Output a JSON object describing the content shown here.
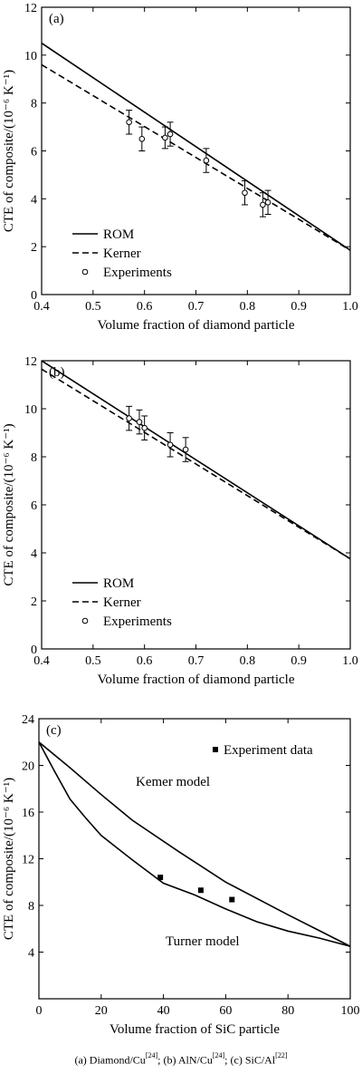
{
  "chart_data": [
    {
      "type": "line",
      "panel_tag": "(a)",
      "xlabel": "Volume fraction of diamond particle",
      "ylabel": "CTE of composite/(10⁻⁶ K⁻¹)",
      "xlim": [
        0.4,
        1.0
      ],
      "ylim": [
        0,
        12
      ],
      "x_ticks": [
        "0.4",
        "0.5",
        "0.6",
        "0.7",
        "0.8",
        "0.9",
        "1.0"
      ],
      "y_ticks": [
        "0",
        "2",
        "4",
        "6",
        "8",
        "10",
        "12"
      ],
      "legend_position": "bottom-left",
      "series": [
        {
          "name": "ROM",
          "style": "solid",
          "x": [
            0.4,
            1.0
          ],
          "y": [
            10.5,
            1.85
          ]
        },
        {
          "name": "Kerner",
          "style": "dashed",
          "x": [
            0.4,
            1.0
          ],
          "y": [
            9.6,
            1.85
          ]
        },
        {
          "name": "Experiments",
          "style": "markers",
          "x": [
            0.57,
            0.595,
            0.64,
            0.65,
            0.72,
            0.795,
            0.83,
            0.84
          ],
          "y": [
            7.2,
            6.5,
            6.55,
            6.7,
            5.6,
            4.25,
            3.75,
            3.85
          ],
          "err": [
            0.5,
            0.5,
            0.45,
            0.5,
            0.5,
            0.5,
            0.5,
            0.5
          ]
        }
      ]
    },
    {
      "type": "line",
      "panel_tag": "(b)",
      "xlabel": "Volume fraction of diamond particle",
      "ylabel": "CTE of composite/(10⁻⁶ K⁻¹)",
      "xlim": [
        0.4,
        1.0
      ],
      "ylim": [
        0,
        12
      ],
      "x_ticks": [
        "0.4",
        "0.5",
        "0.6",
        "0.7",
        "0.8",
        "0.9",
        "1.0"
      ],
      "y_ticks": [
        "0",
        "2",
        "4",
        "6",
        "8",
        "10",
        "12"
      ],
      "legend_position": "bottom-left",
      "series": [
        {
          "name": "ROM",
          "style": "solid",
          "x": [
            0.4,
            1.0
          ],
          "y": [
            12.0,
            3.75
          ]
        },
        {
          "name": "Kerner",
          "style": "dashed",
          "x": [
            0.4,
            1.0
          ],
          "y": [
            11.65,
            3.75
          ]
        },
        {
          "name": "Experiments",
          "style": "markers",
          "x": [
            0.57,
            0.59,
            0.6,
            0.65,
            0.68
          ],
          "y": [
            9.6,
            9.45,
            9.2,
            8.5,
            8.3
          ],
          "err": [
            0.5,
            0.5,
            0.5,
            0.5,
            0.5
          ]
        }
      ]
    },
    {
      "type": "line",
      "panel_tag": "(c)",
      "xlabel": "Volume fraction of SiC particle",
      "ylabel": "CTE of composite/(10⁻⁶ K⁻¹)",
      "xlim": [
        0,
        100
      ],
      "ylim": [
        0,
        24
      ],
      "x_ticks": [
        "0",
        "20",
        "40",
        "60",
        "80",
        "100"
      ],
      "y_ticks": [
        "4",
        "8",
        "12",
        "16",
        "20",
        "24"
      ],
      "annotations": [
        "Kemer model",
        "Turner model"
      ],
      "legend_position": "top-right",
      "series": [
        {
          "name": "Kemer model",
          "style": "solid",
          "x": [
            0,
            10,
            20,
            30,
            45,
            60,
            80,
            100
          ],
          "y": [
            22.0,
            19.8,
            17.5,
            15.3,
            12.6,
            10.0,
            7.2,
            4.5
          ]
        },
        {
          "name": "Turner model",
          "style": "solid",
          "x": [
            0,
            5,
            10,
            15,
            20,
            30,
            40,
            50,
            60,
            70,
            80,
            90,
            100
          ],
          "y": [
            22.0,
            19.5,
            17.1,
            15.5,
            14.0,
            11.9,
            9.9,
            8.9,
            7.7,
            6.6,
            5.8,
            5.2,
            4.5
          ]
        },
        {
          "name": "Experiment data",
          "style": "square-markers",
          "x": [
            39,
            52,
            62
          ],
          "y": [
            10.4,
            9.3,
            8.5
          ]
        }
      ]
    }
  ],
  "caption": "(a) Diamond/Cu[24]; (b) AlN/Cu[24]; (c) SiC/Al[22]",
  "caption_parts": {
    "a_text": "(a) Diamond/Cu",
    "a_ref": "[24]",
    "sep_ab": "; ",
    "b_text": "(b) AlN/Cu",
    "b_ref": "[24]",
    "sep_bc": "; ",
    "c_text": "(c) SiC/Al",
    "c_ref": "[22]"
  }
}
